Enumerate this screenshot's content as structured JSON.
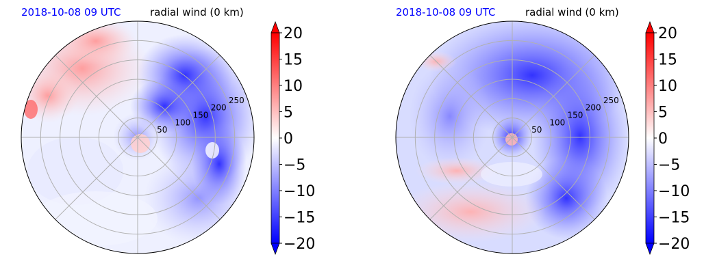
{
  "panels": [
    {
      "date_label": "2018-10-08 09 UTC",
      "title": "radial wind (0 km)",
      "date_color": "#0000ff"
    },
    {
      "date_label": "2018-10-08 09 UTC",
      "title": "radial wind (0 km)",
      "date_color": "#0000ff"
    }
  ],
  "chart_data": [
    {
      "type": "heatmap",
      "projection": "polar",
      "title": "radial wind (0 km)",
      "subtitle": "2018-10-08 09 UTC",
      "radial_ticks": [
        50,
        100,
        150,
        200,
        250
      ],
      "rlim": [
        0,
        300
      ],
      "angular_gridlines_deg": [
        0,
        45,
        90,
        135,
        180,
        225,
        270,
        315
      ],
      "grid": true,
      "colorbar": {
        "ticks": [
          20,
          15,
          10,
          5,
          0,
          -5,
          -10,
          -15,
          -20
        ],
        "tick_labels": [
          "20",
          "15",
          "10",
          "5",
          "0",
          "−5",
          "−10",
          "−15",
          "−20"
        ],
        "range": [
          -20,
          20
        ],
        "colormap": "bwr",
        "extend": "both"
      }
    },
    {
      "type": "heatmap",
      "projection": "polar",
      "title": "radial wind (0 km)",
      "subtitle": "2018-10-08 09 UTC",
      "radial_ticks": [
        50,
        100,
        150,
        200,
        250
      ],
      "rlim": [
        0,
        300
      ],
      "angular_gridlines_deg": [
        0,
        45,
        90,
        135,
        180,
        225,
        270,
        315
      ],
      "grid": true,
      "colorbar": {
        "ticks": [
          20,
          15,
          10,
          5,
          0,
          -5,
          -10,
          -15,
          -20
        ],
        "tick_labels": [
          "20",
          "15",
          "10",
          "5",
          "0",
          "−5",
          "−10",
          "−15",
          "−20"
        ],
        "range": [
          -20,
          20
        ],
        "colormap": "bwr",
        "extend": "both"
      }
    }
  ]
}
